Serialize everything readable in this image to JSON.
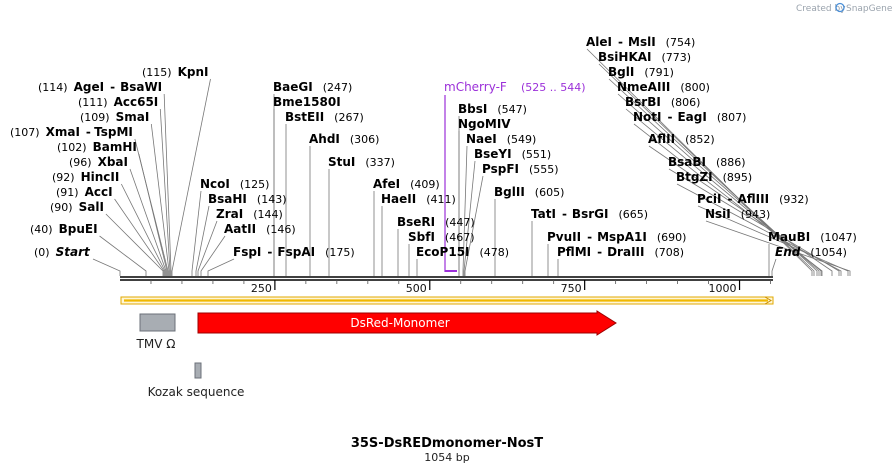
{
  "watermark": {
    "prefix": "Created by",
    "brand": "SnapGene"
  },
  "title": "35S-DsREDmonomer-NosT",
  "length_label": "1054 bp",
  "ruler": {
    "ticks": [
      "250",
      "500",
      "750",
      "1000"
    ]
  },
  "sites": [
    {
      "pos": "(754)",
      "name": "AleI",
      "pair": "MslI"
    },
    {
      "pos": "(773)",
      "name": "BsiHKAI"
    },
    {
      "pos": "(791)",
      "name": "BglI"
    },
    {
      "pos": "(800)",
      "name": "NmeAIII"
    },
    {
      "pos": "(806)",
      "name": "BsrBI"
    },
    {
      "pos": "(807)",
      "name": "NotI",
      "pair": "EagI"
    },
    {
      "pos": "(852)",
      "name": "AflII"
    },
    {
      "pos": "(886)",
      "name": "BsaBI"
    },
    {
      "pos": "(895)",
      "name": "BtgZI"
    },
    {
      "pos": "(932)",
      "name": "PciI",
      "pair": "AflIII"
    },
    {
      "pos": "(943)",
      "name": "NsiI"
    },
    {
      "pos": "(1047)",
      "name": "MauBI"
    },
    {
      "pos": "(1054)",
      "name": "End"
    },
    {
      "pos": "(115)",
      "name": "KpnI"
    },
    {
      "pos": "(114)",
      "name": "AgeI",
      "pair": "BsaWI"
    },
    {
      "pos": "(111)",
      "name": "Acc65I"
    },
    {
      "pos": "(109)",
      "name": "SmaI"
    },
    {
      "pos": "(107)",
      "name": "XmaI",
      "pair": "TspMI"
    },
    {
      "pos": "(102)",
      "name": "BamHI"
    },
    {
      "pos": "(96)",
      "name": "XbaI"
    },
    {
      "pos": "(92)",
      "name": "HincII"
    },
    {
      "pos": "(91)",
      "name": "AccI"
    },
    {
      "pos": "(90)",
      "name": "SalI"
    },
    {
      "pos": "(40)",
      "name": "BpuEI"
    },
    {
      "pos": "(0)",
      "name": "Start"
    },
    {
      "pos": "(247)",
      "name": "BaeGI"
    },
    {
      "name": "Bme1580I"
    },
    {
      "pos": "(267)",
      "name": "BstEII"
    },
    {
      "pos": "(306)",
      "name": "AhdI"
    },
    {
      "pos": "(337)",
      "name": "StuI"
    },
    {
      "pos": "(125)",
      "name": "NcoI"
    },
    {
      "pos": "(143)",
      "name": "BsaHI"
    },
    {
      "pos": "(144)",
      "name": "ZraI"
    },
    {
      "pos": "(146)",
      "name": "AatII"
    },
    {
      "pos": "(175)",
      "name": "FspI",
      "pair": "FspAI"
    },
    {
      "pos": "(409)",
      "name": "AfeI"
    },
    {
      "pos": "(411)",
      "name": "HaeII"
    },
    {
      "pos": "(447)",
      "name": "BseRI"
    },
    {
      "pos": "(467)",
      "name": "SbfI"
    },
    {
      "pos": "(478)",
      "name": "EcoP15I"
    },
    {
      "pos": "(547)",
      "name": "BbsI"
    },
    {
      "name": "NgoMIV"
    },
    {
      "pos": "(549)",
      "name": "NaeI"
    },
    {
      "pos": "(551)",
      "name": "BseYI"
    },
    {
      "pos": "(555)",
      "name": "PspFI"
    },
    {
      "pos": "(605)",
      "name": "BglII"
    },
    {
      "pos": "(665)",
      "name": "TatI",
      "pair": "BsrGI"
    },
    {
      "pos": "(690)",
      "name": "PvuII",
      "pair": "MspA1I"
    },
    {
      "pos": "(708)",
      "name": "PflMI",
      "pair": "DraIII"
    }
  ],
  "primer": {
    "name": "mCherry-F",
    "range": "(525 .. 544)",
    "color": "#9b30d9"
  },
  "features": [
    {
      "label": "TMV Ω",
      "color": "#a8adb3"
    },
    {
      "label": "DsRed-Monomer",
      "color": "#ff0000",
      "text_color": "#ffffff"
    },
    {
      "label": "Kozak sequence",
      "color": "#a8adb3"
    }
  ],
  "colors": {
    "orf": "#f0b800",
    "backbone": "#000000",
    "primer": "#9b30d9"
  }
}
